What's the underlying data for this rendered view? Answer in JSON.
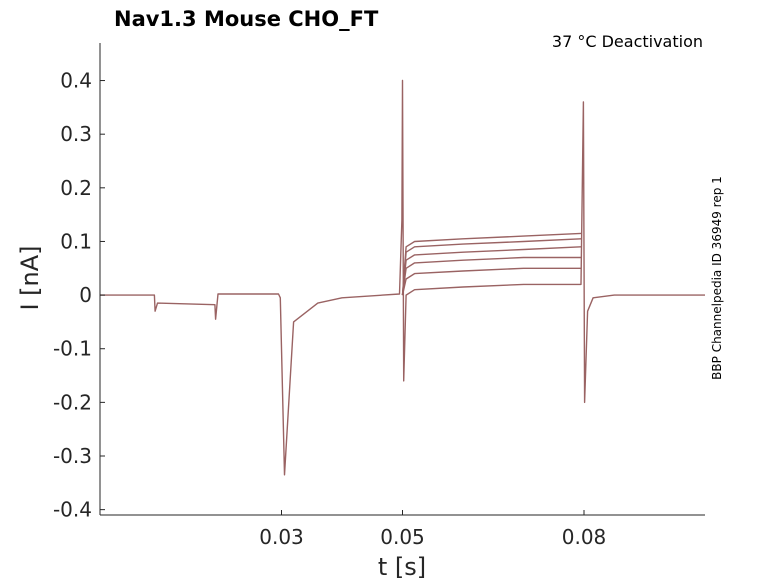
{
  "chart_data": {
    "type": "line",
    "title": "Nav1.3  Mouse  CHO_FT",
    "annotation": "37 °C  Deactivation",
    "side_note": "BBP Channelpedia ID 36949 rep 1",
    "xlabel": "t [s]",
    "ylabel": "I [nA]",
    "xlim": [
      0.0,
      0.1
    ],
    "ylim": [
      -0.41,
      0.47
    ],
    "x_ticks": [
      0.03,
      0.05,
      0.08
    ],
    "x_tick_labels": [
      "0.03",
      "0.05",
      "0.08"
    ],
    "y_ticks": [
      -0.4,
      -0.3,
      -0.2,
      -0.1,
      0,
      0.1,
      0.2,
      0.3,
      0.4
    ],
    "y_tick_labels": [
      "-0.4",
      "-0.3",
      "-0.2",
      "-0.1",
      "0",
      "0.1",
      "0.2",
      "0.3",
      "0.4"
    ],
    "grid": false,
    "color": "#9a6363",
    "series": [
      {
        "x": [
          0.0,
          0.009,
          0.0091,
          0.0095,
          0.019,
          0.0191,
          0.0195,
          0.0295,
          0.0298,
          0.0305,
          0.032,
          0.036,
          0.04,
          0.0495,
          0.0499,
          0.05,
          0.0502,
          0.0506,
          0.052,
          0.06,
          0.07,
          0.0795,
          0.0799,
          0.0801,
          0.0806,
          0.0815,
          0.085,
          0.1
        ],
        "y": [
          0.0,
          0.0,
          -0.03,
          -0.015,
          -0.018,
          -0.045,
          0.002,
          0.002,
          -0.005,
          -0.335,
          -0.05,
          -0.015,
          -0.005,
          0.002,
          0.14,
          0.4,
          -0.16,
          0.0,
          0.01,
          0.015,
          0.02,
          0.02,
          0.36,
          -0.2,
          -0.03,
          -0.005,
          0.0,
          0.0
        ]
      },
      {
        "x": [
          0.05,
          0.0506,
          0.052,
          0.06,
          0.07,
          0.0795
        ],
        "y": [
          0.0,
          0.03,
          0.04,
          0.045,
          0.05,
          0.05
        ]
      },
      {
        "x": [
          0.05,
          0.0506,
          0.052,
          0.06,
          0.07,
          0.0795
        ],
        "y": [
          0.0,
          0.05,
          0.06,
          0.065,
          0.07,
          0.07
        ]
      },
      {
        "x": [
          0.05,
          0.0506,
          0.052,
          0.06,
          0.07,
          0.0795
        ],
        "y": [
          0.0,
          0.065,
          0.075,
          0.08,
          0.085,
          0.09
        ]
      },
      {
        "x": [
          0.05,
          0.0506,
          0.052,
          0.06,
          0.07,
          0.0795
        ],
        "y": [
          0.0,
          0.08,
          0.09,
          0.095,
          0.1,
          0.105
        ]
      },
      {
        "x": [
          0.05,
          0.0506,
          0.052,
          0.06,
          0.07,
          0.0795
        ],
        "y": [
          0.0,
          0.09,
          0.1,
          0.105,
          0.11,
          0.115
        ]
      }
    ]
  }
}
